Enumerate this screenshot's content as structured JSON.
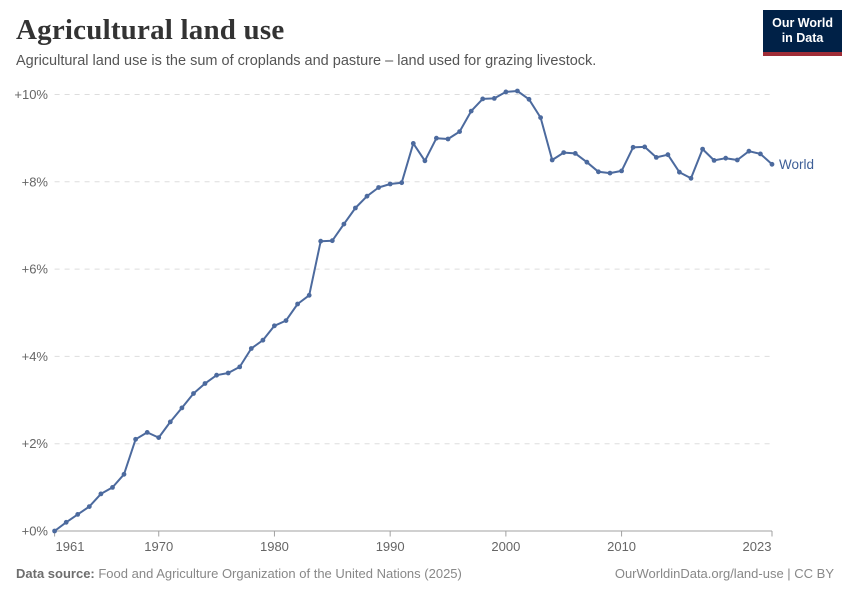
{
  "header": {
    "title": "Agricultural land use",
    "subtitle": "Agricultural land use is the sum of croplands and pasture – land used for grazing livestock.",
    "logo_line1": "Our World",
    "logo_line2": "in Data"
  },
  "chart_data": {
    "type": "line",
    "title": "Agricultural land use",
    "entity_label": "World",
    "unit": "%",
    "x": [
      1961,
      1962,
      1963,
      1964,
      1965,
      1966,
      1967,
      1968,
      1969,
      1970,
      1971,
      1972,
      1973,
      1974,
      1975,
      1976,
      1977,
      1978,
      1979,
      1980,
      1981,
      1982,
      1983,
      1984,
      1985,
      1986,
      1987,
      1988,
      1989,
      1990,
      1991,
      1992,
      1993,
      1994,
      1995,
      1996,
      1997,
      1998,
      1999,
      2000,
      2001,
      2002,
      2003,
      2004,
      2005,
      2006,
      2007,
      2008,
      2009,
      2010,
      2011,
      2012,
      2013,
      2014,
      2015,
      2016,
      2017,
      2018,
      2019,
      2020,
      2021,
      2022,
      2023
    ],
    "values": [
      0,
      0.2,
      0.38,
      0.56,
      0.85,
      1.0,
      1.3,
      2.1,
      2.26,
      2.14,
      2.5,
      2.82,
      3.15,
      3.38,
      3.57,
      3.62,
      3.76,
      4.18,
      4.37,
      4.7,
      4.82,
      5.2,
      5.4,
      6.64,
      6.65,
      7.03,
      7.4,
      7.67,
      7.87,
      7.95,
      7.98,
      8.88,
      8.48,
      9.0,
      8.98,
      9.15,
      9.62,
      9.9,
      9.91,
      10.06,
      10.08,
      9.89,
      9.47,
      8.5,
      8.67,
      8.65,
      8.45,
      8.23,
      8.2,
      8.25,
      8.79,
      8.8,
      8.56,
      8.62,
      8.22,
      8.08,
      8.75,
      8.49,
      8.54,
      8.5,
      8.7,
      8.64,
      8.4
    ],
    "x_ticks": [
      1961,
      1970,
      1980,
      1990,
      2000,
      2010,
      2023
    ],
    "y_ticks": [
      {
        "value": 0,
        "label": "+0%"
      },
      {
        "value": 2,
        "label": "+2%"
      },
      {
        "value": 4,
        "label": "+4%"
      },
      {
        "value": 6,
        "label": "+6%"
      },
      {
        "value": 8,
        "label": "+8%"
      },
      {
        "value": 10,
        "label": "+10%"
      }
    ],
    "xlim": [
      1961,
      2023
    ],
    "ylim": [
      0,
      10.4
    ],
    "grid": "horizontal-dashed",
    "legend_position": "end-of-line"
  },
  "colors": {
    "line": "#4c6a9e",
    "entity_label": "#3d5e97",
    "gridline": "#dddddd",
    "axis": "#a1a1a1",
    "tick_label": "#666666",
    "logo_bg": "#002147",
    "logo_stripe": "#a02d37"
  },
  "footer": {
    "datasource_label": "Data source:",
    "datasource_text": " Food and Agriculture Organization of the United Nations (2025)",
    "link_text": "OurWorldinData.org/land-use | CC BY"
  }
}
